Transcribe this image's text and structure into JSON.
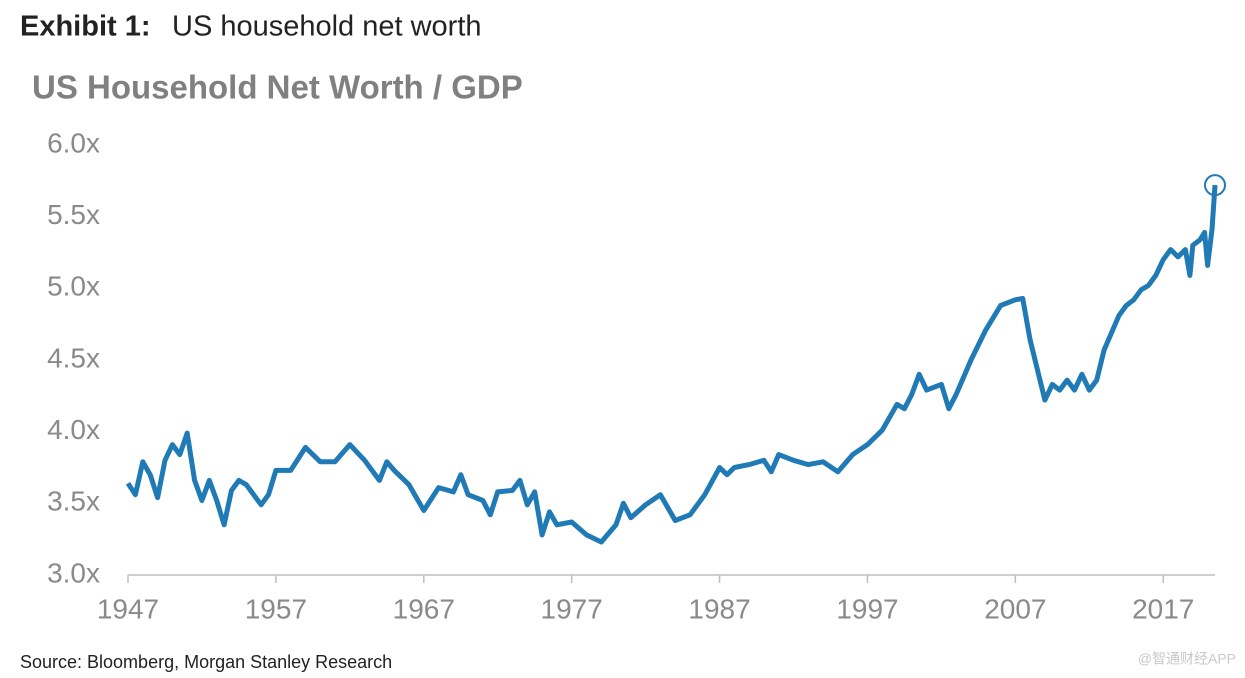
{
  "chart_data": {
    "type": "line",
    "exhibit": "Exhibit 1:",
    "title": "US household net worth",
    "subtitle": "US Household Net Worth / GDP",
    "source": "Source: Bloomberg, Morgan Stanley Research",
    "watermark": "@智通财经APP",
    "xlim": [
      1947,
      2020.5
    ],
    "xticks": [
      1947,
      1957,
      1967,
      1977,
      1987,
      1997,
      2007,
      2017
    ],
    "ylim": [
      3.0,
      6.0
    ],
    "yticks": [
      {
        "value": 3.0,
        "label": "3.0x"
      },
      {
        "value": 3.5,
        "label": "3.5x"
      },
      {
        "value": 4.0,
        "label": "4.0x"
      },
      {
        "value": 4.5,
        "label": "4.5x"
      },
      {
        "value": 5.0,
        "label": "5.0x"
      },
      {
        "value": 5.5,
        "label": "5.5x"
      },
      {
        "value": 6.0,
        "label": "6.0x"
      }
    ],
    "grid": false,
    "color": "#1f7ab5",
    "highlight_last": true,
    "x": [
      1947,
      1947.5,
      1948,
      1948.5,
      1949,
      1949.5,
      1950,
      1950.5,
      1951,
      1951.5,
      1952,
      1952.5,
      1953,
      1953.5,
      1954,
      1954.5,
      1955,
      1956,
      1956.5,
      1957,
      1958,
      1959,
      1960,
      1961,
      1962,
      1963,
      1964,
      1964.5,
      1965,
      1966,
      1967,
      1968,
      1969,
      1969.5,
      1970,
      1971,
      1971.5,
      1972,
      1973,
      1973.5,
      1974,
      1974.5,
      1975,
      1975.5,
      1976,
      1977,
      1978,
      1979,
      1980,
      1980.5,
      1981,
      1982,
      1983,
      1984,
      1985,
      1986,
      1987,
      1987.5,
      1988,
      1989,
      1990,
      1990.5,
      1991,
      1992,
      1993,
      1994,
      1995,
      1996,
      1997,
      1998,
      1999,
      1999.5,
      2000,
      2000.5,
      2001,
      2002,
      2002.5,
      2003,
      2004,
      2005,
      2006,
      2007,
      2007.5,
      2008,
      2009,
      2009.5,
      2010,
      2010.5,
      2011,
      2011.5,
      2012,
      2012.5,
      2013,
      2014,
      2014.5,
      2015,
      2015.5,
      2016,
      2016.5,
      2017,
      2017.5,
      2018,
      2018.5,
      2018.8,
      2019,
      2019.5,
      2019.8,
      2020,
      2020.3,
      2020.5
    ],
    "values": [
      3.64,
      3.56,
      3.79,
      3.7,
      3.54,
      3.8,
      3.91,
      3.84,
      3.99,
      3.66,
      3.52,
      3.66,
      3.52,
      3.35,
      3.59,
      3.66,
      3.63,
      3.49,
      3.56,
      3.73,
      3.73,
      3.89,
      3.79,
      3.79,
      3.91,
      3.8,
      3.66,
      3.79,
      3.73,
      3.63,
      3.45,
      3.61,
      3.58,
      3.7,
      3.56,
      3.52,
      3.42,
      3.58,
      3.59,
      3.66,
      3.49,
      3.58,
      3.28,
      3.44,
      3.35,
      3.37,
      3.28,
      3.23,
      3.35,
      3.5,
      3.4,
      3.49,
      3.56,
      3.38,
      3.42,
      3.56,
      3.75,
      3.7,
      3.75,
      3.77,
      3.8,
      3.72,
      3.84,
      3.8,
      3.77,
      3.79,
      3.72,
      3.84,
      3.91,
      4.01,
      4.19,
      4.16,
      4.26,
      4.4,
      4.29,
      4.33,
      4.16,
      4.26,
      4.5,
      4.71,
      4.88,
      4.92,
      4.93,
      4.64,
      4.22,
      4.33,
      4.29,
      4.36,
      4.29,
      4.4,
      4.29,
      4.36,
      4.57,
      4.81,
      4.88,
      4.92,
      4.99,
      5.02,
      5.09,
      5.2,
      5.27,
      5.22,
      5.27,
      5.09,
      5.3,
      5.34,
      5.39,
      5.16,
      5.41,
      5.72
    ]
  }
}
